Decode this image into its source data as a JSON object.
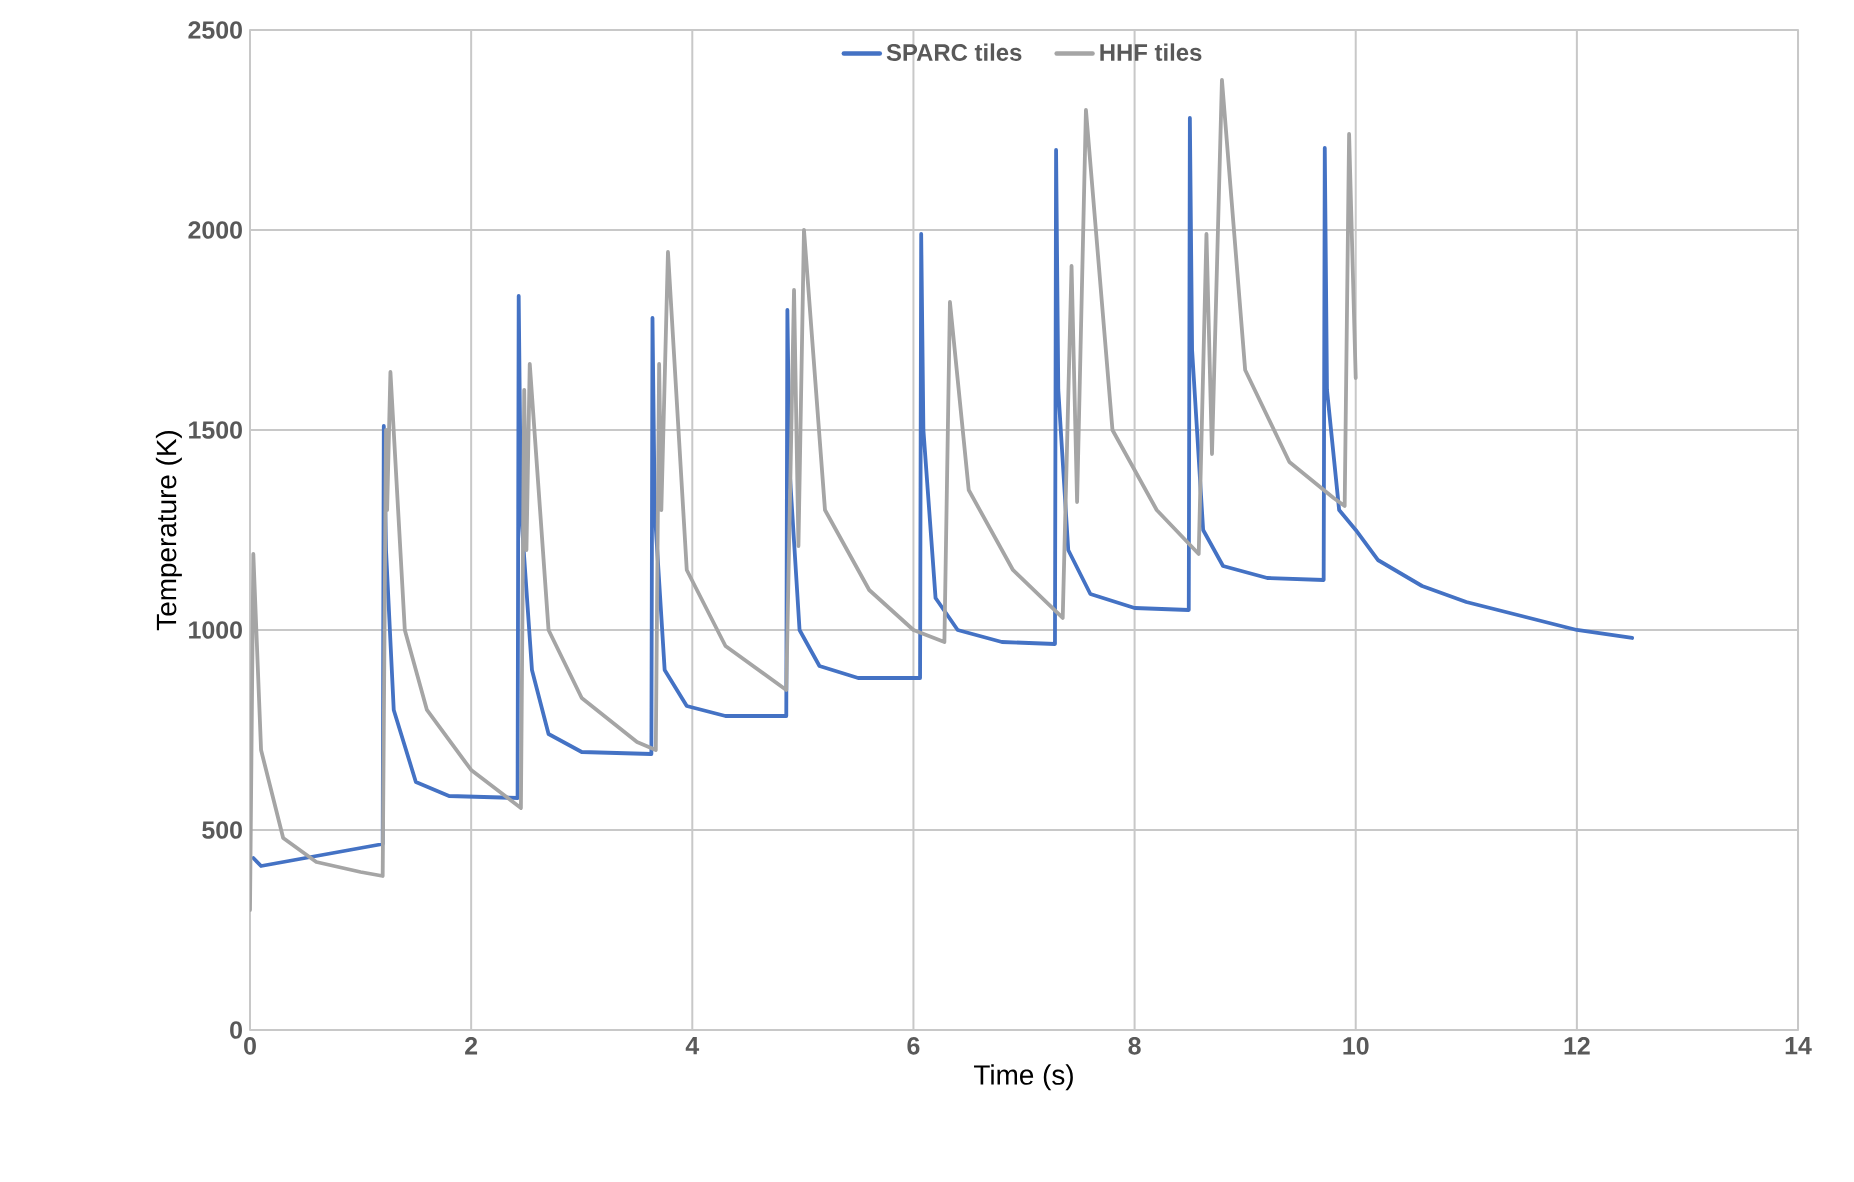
{
  "chart_data": {
    "type": "line",
    "xlabel": "Time (s)",
    "ylabel": "Temperature (K)",
    "xlim": [
      0,
      14
    ],
    "xticks": [
      0,
      2,
      4,
      6,
      8,
      10,
      12,
      14
    ],
    "ylim": [
      0,
      2500
    ],
    "yticks": [
      0,
      500,
      1000,
      1500,
      2000,
      2500
    ],
    "grid": true,
    "legend": "top",
    "marker": "none",
    "line_style": "solid",
    "series": [
      {
        "name": "SPARC tiles",
        "color": "#4472c4",
        "x": [
          0.03,
          0.1,
          0.2,
          0.5,
          0.9,
          1.2,
          1.21,
          1.23,
          1.3,
          1.5,
          1.8,
          2.42,
          2.43,
          2.45,
          2.55,
          2.7,
          3.0,
          3.63,
          3.64,
          3.66,
          3.75,
          3.95,
          4.3,
          4.85,
          4.86,
          4.88,
          4.97,
          5.15,
          5.5,
          6.06,
          6.07,
          6.09,
          6.2,
          6.4,
          6.8,
          7.28,
          7.29,
          7.31,
          7.4,
          7.6,
          8.0,
          8.49,
          8.5,
          8.52,
          8.62,
          8.8,
          9.2,
          9.71,
          9.72,
          9.74,
          9.85,
          10.0,
          10.2,
          10.6,
          11.0,
          11.5,
          12.0,
          12.5
        ],
        "values": [
          430,
          410,
          415,
          430,
          450,
          465,
          1510,
          1200,
          800,
          620,
          585,
          580,
          1835,
          1300,
          900,
          740,
          695,
          690,
          1780,
          1300,
          900,
          810,
          785,
          785,
          1800,
          1400,
          1000,
          910,
          880,
          880,
          1990,
          1500,
          1080,
          1000,
          970,
          965,
          2200,
          1600,
          1200,
          1090,
          1055,
          1050,
          2280,
          1700,
          1250,
          1160,
          1130,
          1125,
          2205,
          1600,
          1300,
          1250,
          1175,
          1110,
          1070,
          1035,
          1000,
          980
        ]
      },
      {
        "name": "HHF tiles",
        "color": "#a5a5a5",
        "x": [
          0,
          0.03,
          0.1,
          0.3,
          0.6,
          1.0,
          1.2,
          1.23,
          1.24,
          1.27,
          1.4,
          1.6,
          2.0,
          2.45,
          2.48,
          2.5,
          2.53,
          2.7,
          3.0,
          3.5,
          3.67,
          3.7,
          3.72,
          3.78,
          3.95,
          4.3,
          4.85,
          4.92,
          4.96,
          5.01,
          5.2,
          5.6,
          6.0,
          6.28,
          6.33,
          6.5,
          6.9,
          7.35,
          7.43,
          7.48,
          7.56,
          7.8,
          8.2,
          8.58,
          8.65,
          8.7,
          8.79,
          9.0,
          9.4,
          9.8,
          9.9,
          9.94,
          10.0
        ],
        "values": [
          300,
          1190,
          700,
          480,
          420,
          395,
          385,
          1500,
          1300,
          1645,
          1000,
          800,
          650,
          555,
          1600,
          1200,
          1665,
          1000,
          830,
          720,
          700,
          1665,
          1300,
          1945,
          1150,
          960,
          850,
          1850,
          1210,
          2000,
          1300,
          1100,
          1000,
          970,
          1820,
          1350,
          1150,
          1030,
          1910,
          1320,
          2300,
          1500,
          1300,
          1190,
          1990,
          1440,
          2375,
          1650,
          1420,
          1330,
          1310,
          2240,
          1630
        ]
      }
    ]
  }
}
